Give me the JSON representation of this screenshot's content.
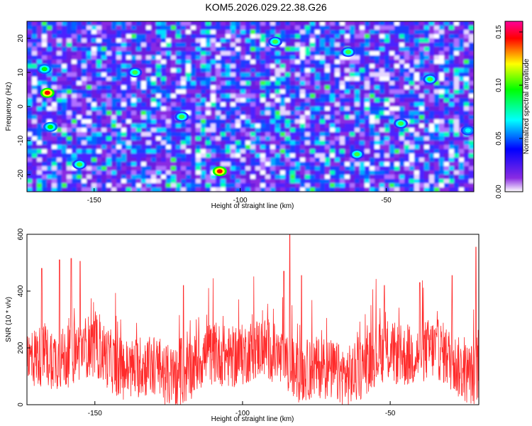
{
  "title": "KOM5.2026.029.22.38.G26",
  "chart_data": [
    {
      "type": "heatmap",
      "xlabel": "Height of straight line (km)",
      "ylabel": "Frequency (Hz)",
      "xlim": [
        -173,
        -20
      ],
      "ylim": [
        -25,
        25
      ],
      "xticks": [
        -150,
        -100,
        -50
      ],
      "yticks": [
        20,
        10,
        0,
        -10,
        -20
      ],
      "colorbar": {
        "label": "Normalized spectral amplitude",
        "range": [
          0.0,
          0.16
        ],
        "ticks": [
          "0.00",
          "0.05",
          "0.10",
          "0.15"
        ],
        "colors": [
          "#ffffff",
          "#8a2be2",
          "#0000ff",
          "#00ffff",
          "#00ff00",
          "#ffff00",
          "#ff0000",
          "#ff0099"
        ]
      },
      "peaks": [
        {
          "x": -107,
          "y": -19,
          "value": 0.155
        },
        {
          "x": -166,
          "y": 4,
          "value": 0.15
        },
        {
          "x": -165,
          "y": -6,
          "value": 0.09
        },
        {
          "x": -167,
          "y": 11,
          "value": 0.08
        },
        {
          "x": -136,
          "y": 10,
          "value": 0.07
        },
        {
          "x": -155,
          "y": -17,
          "value": 0.07
        },
        {
          "x": -63,
          "y": 16,
          "value": 0.07
        },
        {
          "x": -35,
          "y": 8,
          "value": 0.07
        },
        {
          "x": -60,
          "y": -14,
          "value": 0.065
        },
        {
          "x": -88,
          "y": 19,
          "value": 0.06
        },
        {
          "x": -120,
          "y": -3,
          "value": 0.06
        },
        {
          "x": -45,
          "y": -5,
          "value": 0.06
        },
        {
          "x": -22,
          "y": -7,
          "value": 0.055
        }
      ],
      "grid": false
    },
    {
      "type": "line",
      "xlabel": "Height of straight line (km)",
      "ylabel": "SNR (10 * v/v)",
      "xlim": [
        -173,
        -20
      ],
      "ylim": [
        0,
        600
      ],
      "xticks": [
        -150,
        -100,
        -50
      ],
      "yticks": [
        0,
        200,
        400,
        600
      ],
      "color": "#ff2a2a",
      "peaks": [
        {
          "x": -168,
          "y": 480
        },
        {
          "x": -162,
          "y": 510
        },
        {
          "x": -158,
          "y": 515
        },
        {
          "x": -155,
          "y": 505
        },
        {
          "x": -120,
          "y": 420
        },
        {
          "x": -86,
          "y": 470
        },
        {
          "x": -84,
          "y": 600
        },
        {
          "x": -80,
          "y": 455
        },
        {
          "x": -52,
          "y": 420
        },
        {
          "x": -40,
          "y": 430
        },
        {
          "x": -29,
          "y": 455
        },
        {
          "x": -21,
          "y": 555
        }
      ],
      "grid": false
    }
  ]
}
